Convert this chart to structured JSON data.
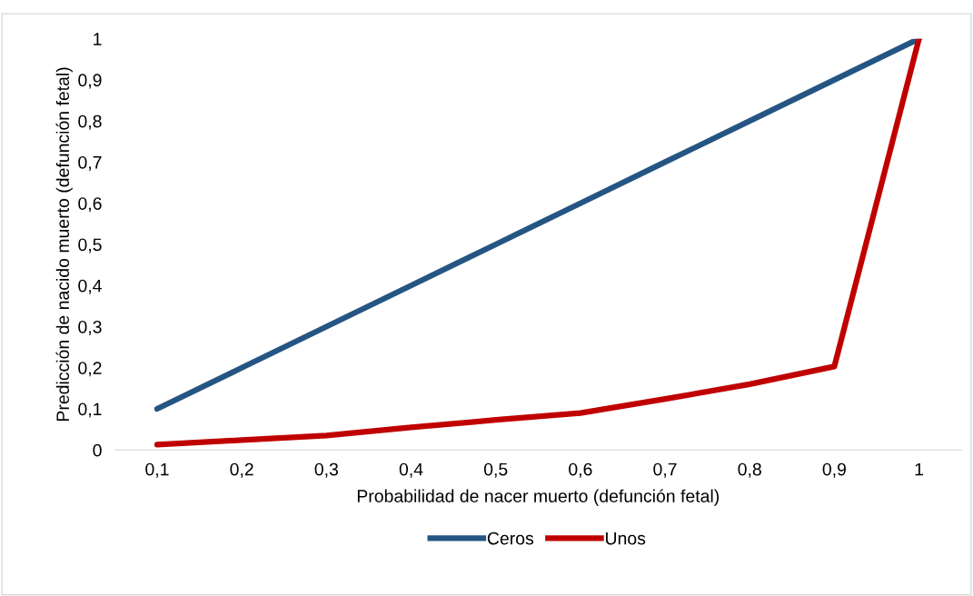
{
  "chart_data": {
    "type": "line",
    "xlabel": "Probabilidad de nacer muerto (defunción fetal)",
    "ylabel": "Predicción de nacido muerto (defunción fetal)",
    "categories": [
      "0,1",
      "0,2",
      "0,3",
      "0,4",
      "0,5",
      "0,6",
      "0,7",
      "0,8",
      "0,9",
      "1"
    ],
    "series": [
      {
        "name": "Ceros",
        "color": "#255583",
        "values": [
          0.1,
          0.2,
          0.3,
          0.4,
          0.5,
          0.6,
          0.7,
          0.8,
          0.9,
          1.0
        ]
      },
      {
        "name": "Unos",
        "color": "#c00000",
        "values": [
          0.013,
          0.024,
          0.035,
          0.055,
          0.073,
          0.09,
          0.124,
          0.16,
          0.203,
          1.0
        ]
      }
    ],
    "ylim": [
      0,
      1
    ],
    "yticks": [
      0,
      {
        "value": 0.1,
        "label": "0,1"
      },
      {
        "value": 0.2,
        "label": "0,2"
      },
      {
        "value": 0.3,
        "label": "0,3"
      },
      {
        "value": 0.4,
        "label": "0,4"
      },
      {
        "value": 0.5,
        "label": "0,5"
      },
      {
        "value": 0.6,
        "label": "0,6"
      },
      {
        "value": 0.7,
        "label": "0,7"
      },
      {
        "value": 0.8,
        "label": "0,8"
      },
      {
        "value": 0.9,
        "label": "0,9"
      },
      1
    ],
    "grid": false,
    "legend": "bottom",
    "marker": "none",
    "line_style": "solid"
  }
}
